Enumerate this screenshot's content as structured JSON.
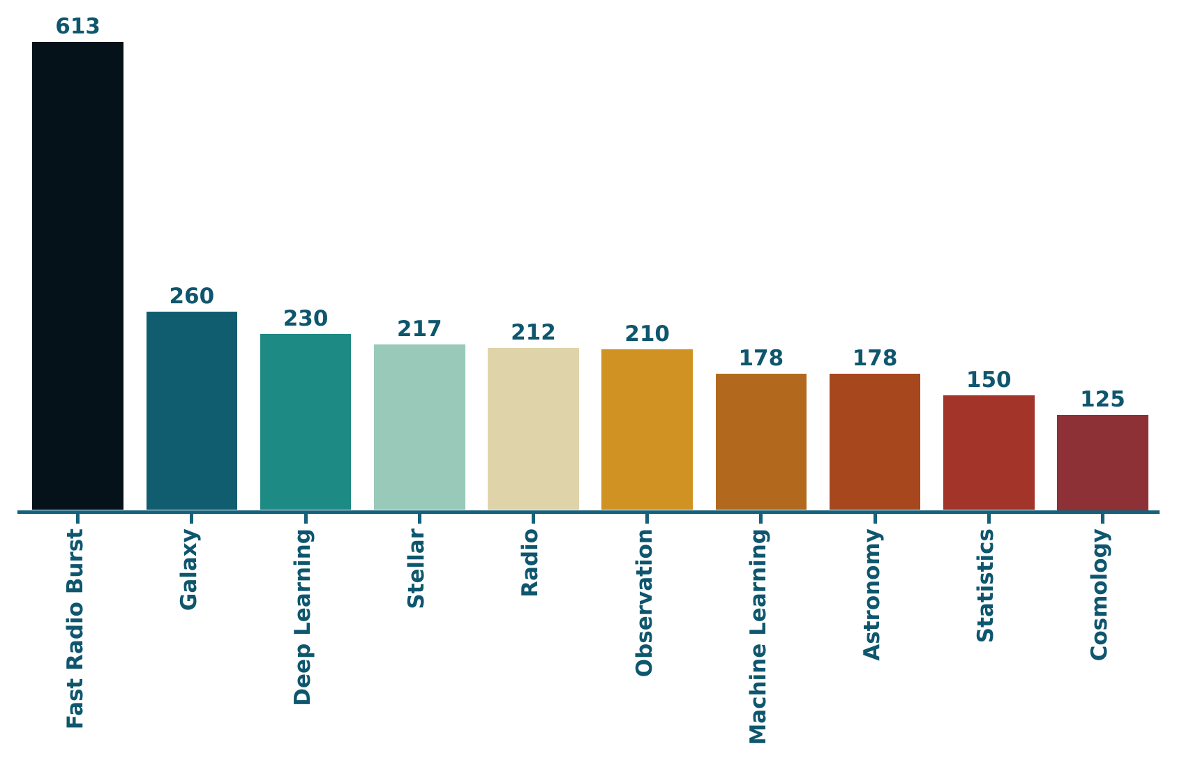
{
  "chart_data": {
    "type": "bar",
    "categories": [
      "Fast Radio Burst",
      "Galaxy",
      "Deep Learning",
      "Stellar",
      "Radio",
      "Observation",
      "Machine Learning",
      "Astronomy",
      "Statistics",
      "Cosmology"
    ],
    "values": [
      613,
      260,
      230,
      217,
      212,
      210,
      178,
      178,
      150,
      125
    ],
    "bar_colors": [
      "#06121a",
      "#115d70",
      "#1e8a84",
      "#99c9b8",
      "#dfd4a9",
      "#d09222",
      "#b2691e",
      "#a6471d",
      "#a2342a",
      "#8d3137"
    ],
    "value_labels": [
      "613",
      "260",
      "230",
      "217",
      "212",
      "210",
      "178",
      "178",
      "150",
      "125"
    ],
    "title": "",
    "xlabel": "",
    "ylabel": "",
    "ylim": [
      0,
      660
    ],
    "grid": false,
    "legend": "none",
    "axis_color": "#15607a",
    "label_text_color": "#0e566e",
    "tick_text_rotation_deg": 90
  }
}
